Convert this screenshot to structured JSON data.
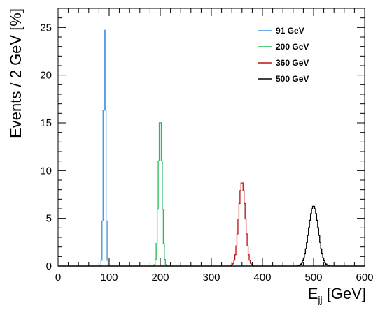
{
  "chart_data": {
    "type": "line",
    "xlabel_main": "E",
    "xlabel_sub": "jj",
    "xlabel_unit": " [GeV]",
    "ylabel": "Events / 2 GeV [%]",
    "xlim": [
      0,
      600
    ],
    "ylim": [
      0,
      27
    ],
    "xticks": [
      0,
      100,
      200,
      300,
      400,
      500,
      600
    ],
    "yticks": [
      0,
      5,
      10,
      15,
      20,
      25
    ],
    "grid": false,
    "legend_position": "top-right",
    "series": [
      {
        "name": "91 GeV",
        "color": "#3f8fde",
        "peak_x": 91,
        "peak_y": 24.7,
        "width": 2.2
      },
      {
        "name": "200 GeV",
        "color": "#22bb55",
        "peak_x": 200,
        "peak_y": 15.6,
        "width": 3.6
      },
      {
        "name": "360 GeV",
        "color": "#bb1111",
        "peak_x": 360,
        "peak_y": 8.8,
        "width": 6.5
      },
      {
        "name": "500 GeV",
        "color": "#000000",
        "peak_x": 500,
        "peak_y": 6.3,
        "width": 9.5
      }
    ]
  }
}
